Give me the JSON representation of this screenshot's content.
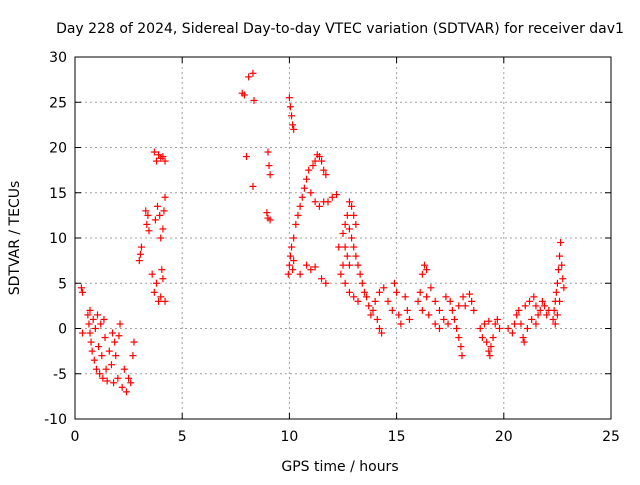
{
  "chart_data": {
    "type": "scatter",
    "title": "Day 228 of 2024, Sidereal Day-to-day VTEC variation (SDTVAR) for receiver dav1",
    "xlabel": "GPS time / hours",
    "ylabel": "SDTVAR / TECUs",
    "xlim": [
      0,
      25
    ],
    "ylim": [
      -10,
      30
    ],
    "xticks": [
      "0",
      "5",
      "10",
      "15",
      "20",
      "25"
    ],
    "yticks": [
      "-10",
      "-5",
      "0",
      "5",
      "10",
      "15",
      "20",
      "25",
      "30"
    ],
    "grid": true,
    "marker": "+",
    "color": "#ff0000",
    "series": [
      {
        "name": "SDTVAR",
        "points": [
          [
            0.3,
            4.5
          ],
          [
            0.35,
            4.0
          ],
          [
            0.35,
            -0.5
          ],
          [
            0.6,
            1.5
          ],
          [
            0.65,
            0.5
          ],
          [
            0.7,
            -0.5
          ],
          [
            0.7,
            2.0
          ],
          [
            0.75,
            -1.5
          ],
          [
            0.8,
            -2.5
          ],
          [
            0.85,
            1.0
          ],
          [
            0.9,
            -3.5
          ],
          [
            0.95,
            0.0
          ],
          [
            1.0,
            -4.5
          ],
          [
            1.05,
            1.5
          ],
          [
            1.1,
            -2.0
          ],
          [
            1.15,
            -5.0
          ],
          [
            1.2,
            0.5
          ],
          [
            1.25,
            -3.0
          ],
          [
            1.3,
            -5.5
          ],
          [
            1.35,
            1.0
          ],
          [
            1.4,
            -1.0
          ],
          [
            1.45,
            -4.5
          ],
          [
            1.5,
            -5.8
          ],
          [
            1.6,
            -2.5
          ],
          [
            1.7,
            -4.0
          ],
          [
            1.75,
            -0.5
          ],
          [
            1.8,
            -6.0
          ],
          [
            1.85,
            -1.5
          ],
          [
            1.9,
            -3.0
          ],
          [
            2.0,
            -5.5
          ],
          [
            2.05,
            -0.8
          ],
          [
            2.1,
            0.5
          ],
          [
            2.2,
            -6.5
          ],
          [
            2.3,
            -4.5
          ],
          [
            2.4,
            -7.0
          ],
          [
            2.5,
            -5.5
          ],
          [
            2.6,
            -6.0
          ],
          [
            2.7,
            -3.0
          ],
          [
            2.75,
            -1.5
          ],
          [
            3.0,
            7.5
          ],
          [
            3.05,
            8.2
          ],
          [
            3.1,
            9.0
          ],
          [
            3.3,
            13.0
          ],
          [
            3.35,
            11.5
          ],
          [
            3.4,
            12.5
          ],
          [
            3.45,
            10.8
          ],
          [
            3.6,
            6.0
          ],
          [
            3.7,
            4.0
          ],
          [
            3.75,
            12.0
          ],
          [
            3.8,
            5.0
          ],
          [
            3.85,
            13.5
          ],
          [
            3.9,
            3.0
          ],
          [
            3.95,
            12.5
          ],
          [
            4.0,
            10.0
          ],
          [
            4.05,
            6.5
          ],
          [
            4.1,
            11.0
          ],
          [
            4.15,
            13.0
          ],
          [
            4.2,
            14.5
          ],
          [
            4.2,
            3.0
          ],
          [
            4.1,
            5.5
          ],
          [
            4.0,
            3.5
          ],
          [
            3.7,
            19.5
          ],
          [
            3.8,
            18.5
          ],
          [
            3.9,
            19.2
          ],
          [
            4.0,
            18.8
          ],
          [
            4.1,
            19.0
          ],
          [
            4.2,
            18.5
          ],
          [
            7.8,
            26.0
          ],
          [
            7.9,
            25.8
          ],
          [
            8.1,
            27.8
          ],
          [
            8.3,
            28.2
          ],
          [
            8.35,
            25.2
          ],
          [
            8.0,
            19.0
          ],
          [
            8.3,
            15.7
          ],
          [
            9.0,
            19.5
          ],
          [
            9.05,
            18.0
          ],
          [
            9.1,
            17.0
          ],
          [
            8.95,
            12.8
          ],
          [
            9.0,
            12.2
          ],
          [
            9.1,
            12.0
          ],
          [
            10.0,
            25.5
          ],
          [
            10.05,
            24.5
          ],
          [
            10.1,
            23.5
          ],
          [
            10.15,
            22.5
          ],
          [
            10.2,
            22.0
          ],
          [
            9.95,
            6.0
          ],
          [
            10.0,
            7.0
          ],
          [
            10.05,
            8.0
          ],
          [
            10.1,
            9.0
          ],
          [
            10.15,
            6.5
          ],
          [
            10.2,
            10.0
          ],
          [
            10.3,
            11.5
          ],
          [
            10.4,
            12.5
          ],
          [
            10.5,
            13.5
          ],
          [
            10.6,
            14.5
          ],
          [
            10.7,
            15.5
          ],
          [
            10.8,
            16.5
          ],
          [
            10.9,
            17.5
          ],
          [
            11.0,
            15.0
          ],
          [
            11.1,
            18.0
          ],
          [
            11.2,
            18.5
          ],
          [
            11.3,
            19.2
          ],
          [
            11.4,
            19.0
          ],
          [
            11.5,
            18.5
          ],
          [
            11.6,
            17.5
          ],
          [
            11.7,
            17.0
          ],
          [
            11.2,
            14.0
          ],
          [
            11.4,
            13.5
          ],
          [
            11.6,
            14.0
          ],
          [
            11.8,
            14.0
          ],
          [
            12.0,
            14.5
          ],
          [
            12.2,
            14.8
          ],
          [
            10.8,
            7.0
          ],
          [
            11.0,
            6.5
          ],
          [
            11.2,
            6.8
          ],
          [
            11.5,
            5.5
          ],
          [
            11.7,
            5.0
          ],
          [
            10.5,
            6.0
          ],
          [
            10.2,
            7.5
          ],
          [
            12.3,
            9.0
          ],
          [
            12.5,
            10.5
          ],
          [
            12.6,
            11.5
          ],
          [
            12.7,
            12.5
          ],
          [
            12.8,
            11.0
          ],
          [
            12.9,
            10.0
          ],
          [
            13.0,
            9.0
          ],
          [
            13.1,
            8.0
          ],
          [
            13.2,
            7.0
          ],
          [
            13.3,
            6.0
          ],
          [
            13.4,
            5.0
          ],
          [
            13.5,
            4.0
          ],
          [
            12.6,
            9.0
          ],
          [
            12.7,
            8.0
          ],
          [
            12.8,
            7.0
          ],
          [
            12.6,
            5.0
          ],
          [
            12.8,
            4.0
          ],
          [
            13.0,
            3.5
          ],
          [
            13.2,
            3.0
          ],
          [
            13.6,
            3.5
          ],
          [
            13.7,
            2.5
          ],
          [
            13.8,
            1.5
          ],
          [
            13.9,
            2.0
          ],
          [
            14.0,
            3.0
          ],
          [
            12.5,
            7.0
          ],
          [
            12.4,
            6.0
          ],
          [
            12.9,
            13.5
          ],
          [
            13.0,
            12.5
          ],
          [
            13.1,
            11.5
          ],
          [
            12.8,
            14.0
          ],
          [
            14.1,
            1.0
          ],
          [
            14.2,
            0.0
          ],
          [
            14.3,
            -0.5
          ],
          [
            14.2,
            4.0
          ],
          [
            14.4,
            4.5
          ],
          [
            14.6,
            3.0
          ],
          [
            14.8,
            2.0
          ],
          [
            14.9,
            5.0
          ],
          [
            15.0,
            4.0
          ],
          [
            15.1,
            1.5
          ],
          [
            15.2,
            0.5
          ],
          [
            15.4,
            3.5
          ],
          [
            15.5,
            2.0
          ],
          [
            15.6,
            1.0
          ],
          [
            16.0,
            3.0
          ],
          [
            16.1,
            4.0
          ],
          [
            16.2,
            6.0
          ],
          [
            16.3,
            7.0
          ],
          [
            16.4,
            6.5
          ],
          [
            16.2,
            2.0
          ],
          [
            16.4,
            3.5
          ],
          [
            16.6,
            4.5
          ],
          [
            16.8,
            3.0
          ],
          [
            17.0,
            2.0
          ],
          [
            17.2,
            1.0
          ],
          [
            17.4,
            0.5
          ],
          [
            17.0,
            0.0
          ],
          [
            16.5,
            1.5
          ],
          [
            16.8,
            0.5
          ],
          [
            17.3,
            3.5
          ],
          [
            17.5,
            3.0
          ],
          [
            17.6,
            2.0
          ],
          [
            17.7,
            1.0
          ],
          [
            17.8,
            0.0
          ],
          [
            17.9,
            -1.0
          ],
          [
            18.0,
            -2.0
          ],
          [
            18.05,
            -3.0
          ],
          [
            17.9,
            2.5
          ],
          [
            18.1,
            3.5
          ],
          [
            18.2,
            2.5
          ],
          [
            18.4,
            3.8
          ],
          [
            18.5,
            3.0
          ],
          [
            18.6,
            2.0
          ],
          [
            18.9,
            0.0
          ],
          [
            19.0,
            -1.0
          ],
          [
            19.1,
            0.5
          ],
          [
            19.2,
            -1.5
          ],
          [
            19.3,
            -2.5
          ],
          [
            19.35,
            -3.0
          ],
          [
            19.4,
            -2.0
          ],
          [
            19.5,
            -1.0
          ],
          [
            19.6,
            0.5
          ],
          [
            19.7,
            1.0
          ],
          [
            19.8,
            0.0
          ],
          [
            19.3,
            0.8
          ],
          [
            20.2,
            0.0
          ],
          [
            20.4,
            -0.5
          ],
          [
            20.5,
            0.5
          ],
          [
            20.6,
            1.5
          ],
          [
            20.7,
            2.0
          ],
          [
            20.8,
            0.5
          ],
          [
            20.9,
            -1.0
          ],
          [
            20.95,
            -1.5
          ],
          [
            21.0,
            2.5
          ],
          [
            21.2,
            3.0
          ],
          [
            21.4,
            3.5
          ],
          [
            21.5,
            2.5
          ],
          [
            21.6,
            1.5
          ],
          [
            21.7,
            2.0
          ],
          [
            21.8,
            3.0
          ],
          [
            21.9,
            2.5
          ],
          [
            22.0,
            1.5
          ],
          [
            22.1,
            2.0
          ],
          [
            21.3,
            1.0
          ],
          [
            21.5,
            0.5
          ],
          [
            21.1,
            0.0
          ],
          [
            22.3,
            1.0
          ],
          [
            22.35,
            2.0
          ],
          [
            22.4,
            3.0
          ],
          [
            22.45,
            4.0
          ],
          [
            22.5,
            5.0
          ],
          [
            22.55,
            6.5
          ],
          [
            22.6,
            8.0
          ],
          [
            22.65,
            9.5
          ],
          [
            22.7,
            7.0
          ],
          [
            22.75,
            5.5
          ],
          [
            22.8,
            4.5
          ],
          [
            22.6,
            3.0
          ],
          [
            22.5,
            1.5
          ],
          [
            22.4,
            0.5
          ]
        ]
      }
    ]
  }
}
